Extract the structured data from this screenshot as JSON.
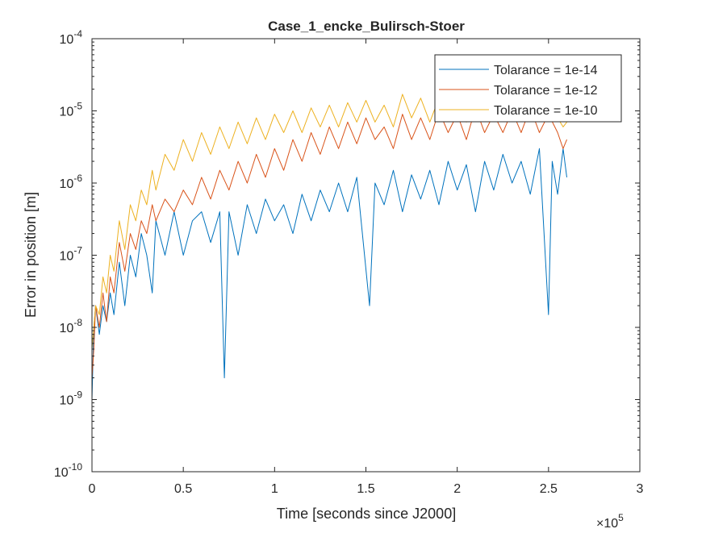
{
  "chart_data": {
    "type": "line",
    "title": "Case_1_encke_Bulirsch-Stoer",
    "xlabel": "Time [seconds since J2000]",
    "ylabel": "Error in position [m]",
    "x_exponent_label": "×10",
    "x_exponent_power": "5",
    "xlim": [
      0,
      300000
    ],
    "ylim": [
      1e-10,
      0.0001
    ],
    "yscale": "log",
    "grid": false,
    "legend_position": "top-right",
    "x_ticks": [
      {
        "value": 0,
        "label": "0"
      },
      {
        "value": 50000,
        "label": "0.5"
      },
      {
        "value": 100000,
        "label": "1"
      },
      {
        "value": 150000,
        "label": "1.5"
      },
      {
        "value": 200000,
        "label": "2"
      },
      {
        "value": 250000,
        "label": "2.5"
      },
      {
        "value": 300000,
        "label": "3"
      }
    ],
    "y_ticks": [
      {
        "value": 1e-10,
        "base": "10",
        "exp": "-10"
      },
      {
        "value": 1e-09,
        "base": "10",
        "exp": "-9"
      },
      {
        "value": 1e-08,
        "base": "10",
        "exp": "-8"
      },
      {
        "value": 1e-07,
        "base": "10",
        "exp": "-7"
      },
      {
        "value": 1e-06,
        "base": "10",
        "exp": "-6"
      },
      {
        "value": 1e-05,
        "base": "10",
        "exp": "-5"
      },
      {
        "value": 0.0001,
        "base": "10",
        "exp": "-4"
      }
    ],
    "series": [
      {
        "name": "Tolarance = 1e-14",
        "color": "#0072BD",
        "x": [
          0,
          1000,
          2000,
          4000,
          6000,
          8000,
          10000,
          12000,
          15000,
          18000,
          21000,
          24000,
          27000,
          30000,
          33000,
          35000,
          40000,
          45000,
          50000,
          55000,
          60000,
          65000,
          70000,
          72500,
          75000,
          80000,
          85000,
          90000,
          95000,
          100000,
          105000,
          110000,
          115000,
          120000,
          125000,
          130000,
          135000,
          140000,
          145000,
          152000,
          155000,
          160000,
          165000,
          170000,
          175000,
          180000,
          185000,
          190000,
          195000,
          200000,
          205000,
          210000,
          215000,
          220000,
          225000,
          230000,
          235000,
          240000,
          245000,
          250000,
          252000,
          255000,
          258000,
          260000
        ],
        "y": [
          1e-09,
          1e-08,
          2e-08,
          8e-09,
          2e-08,
          1.2e-08,
          3e-08,
          1.5e-08,
          8e-08,
          2e-08,
          1e-07,
          5e-08,
          2e-07,
          1e-07,
          3e-08,
          3e-07,
          1e-07,
          4e-07,
          1e-07,
          3e-07,
          4e-07,
          1.5e-07,
          4e-07,
          2e-09,
          4e-07,
          1e-07,
          5e-07,
          2e-07,
          6e-07,
          3e-07,
          5e-07,
          2e-07,
          7e-07,
          3e-07,
          8e-07,
          4e-07,
          1e-06,
          4e-07,
          1.2e-06,
          2e-08,
          1e-06,
          5e-07,
          1.5e-06,
          4e-07,
          1.3e-06,
          6e-07,
          1.5e-06,
          5e-07,
          2e-06,
          8e-07,
          1.8e-06,
          4e-07,
          2e-06,
          8e-07,
          2.5e-06,
          1e-06,
          2e-06,
          7e-07,
          3e-06,
          1.5e-08,
          2e-06,
          7e-07,
          3e-06,
          1.2e-06
        ]
      },
      {
        "name": "Tolarance = 1e-12",
        "color": "#D95319",
        "x": [
          0,
          1000,
          2000,
          4000,
          6000,
          8000,
          10000,
          12000,
          15000,
          18000,
          21000,
          24000,
          27000,
          30000,
          33000,
          35000,
          40000,
          45000,
          50000,
          55000,
          60000,
          65000,
          70000,
          75000,
          80000,
          85000,
          90000,
          95000,
          100000,
          105000,
          110000,
          115000,
          120000,
          125000,
          130000,
          135000,
          140000,
          145000,
          150000,
          155000,
          160000,
          165000,
          170000,
          175000,
          180000,
          185000,
          190000,
          195000,
          200000,
          205000,
          210000,
          215000,
          220000,
          225000,
          230000,
          235000,
          240000,
          245000,
          250000,
          255000,
          258000,
          260000
        ],
        "y": [
          2e-09,
          5e-09,
          2e-08,
          1e-08,
          3e-08,
          1.2e-08,
          5e-08,
          3e-08,
          1.5e-07,
          6e-08,
          2e-07,
          1.2e-07,
          3e-07,
          2e-07,
          5e-07,
          3e-07,
          6e-07,
          4e-07,
          8e-07,
          5e-07,
          1.2e-06,
          6e-07,
          1.5e-06,
          8e-07,
          2e-06,
          1e-06,
          2.5e-06,
          1.2e-06,
          3e-06,
          1.5e-06,
          4e-06,
          2e-06,
          5e-06,
          2.5e-06,
          6e-06,
          3e-06,
          7e-06,
          3.5e-06,
          8e-06,
          4e-06,
          6e-06,
          3e-06,
          9e-06,
          4e-06,
          8e-06,
          4e-06,
          1e-05,
          5e-06,
          9e-06,
          4e-06,
          1.1e-05,
          5e-06,
          9e-06,
          5e-06,
          1e-05,
          5e-06,
          1.1e-05,
          5e-06,
          9e-06,
          5e-06,
          3e-06,
          4e-06
        ]
      },
      {
        "name": "Tolarance = 1e-10",
        "color": "#EDB120",
        "x": [
          0,
          1000,
          2000,
          4000,
          6000,
          8000,
          10000,
          12000,
          15000,
          18000,
          21000,
          24000,
          27000,
          30000,
          33000,
          35000,
          40000,
          45000,
          50000,
          55000,
          60000,
          65000,
          70000,
          75000,
          80000,
          85000,
          90000,
          95000,
          100000,
          105000,
          110000,
          115000,
          120000,
          125000,
          130000,
          135000,
          140000,
          145000,
          150000,
          155000,
          160000,
          165000,
          170000,
          175000,
          180000,
          185000,
          190000,
          195000,
          200000,
          205000,
          210000,
          215000,
          220000,
          225000,
          230000,
          235000,
          240000,
          245000,
          250000,
          255000,
          258000,
          260000
        ],
        "y": [
          5e-09,
          1e-08,
          2e-08,
          1.5e-08,
          5e-08,
          3e-08,
          1e-07,
          6e-08,
          3e-07,
          1.2e-07,
          5e-07,
          3e-07,
          8e-07,
          5e-07,
          1.5e-06,
          8e-07,
          2.5e-06,
          1.5e-06,
          4e-06,
          2e-06,
          5e-06,
          2.5e-06,
          6e-06,
          3e-06,
          7e-06,
          3.5e-06,
          8e-06,
          4e-06,
          9e-06,
          5e-06,
          1e-05,
          5e-06,
          1.1e-05,
          6e-06,
          1.2e-05,
          6e-06,
          1.3e-05,
          7e-06,
          1.4e-05,
          7e-06,
          1.2e-05,
          6e-06,
          1.7e-05,
          8e-06,
          1.5e-05,
          7e-06,
          1.5e-05,
          8e-06,
          1.4e-05,
          7e-06,
          1.5e-05,
          8e-06,
          1.6e-05,
          8e-06,
          1.5e-05,
          8e-06,
          1.6e-05,
          8e-06,
          1.4e-05,
          8e-06,
          6e-06,
          7e-06
        ]
      }
    ]
  }
}
